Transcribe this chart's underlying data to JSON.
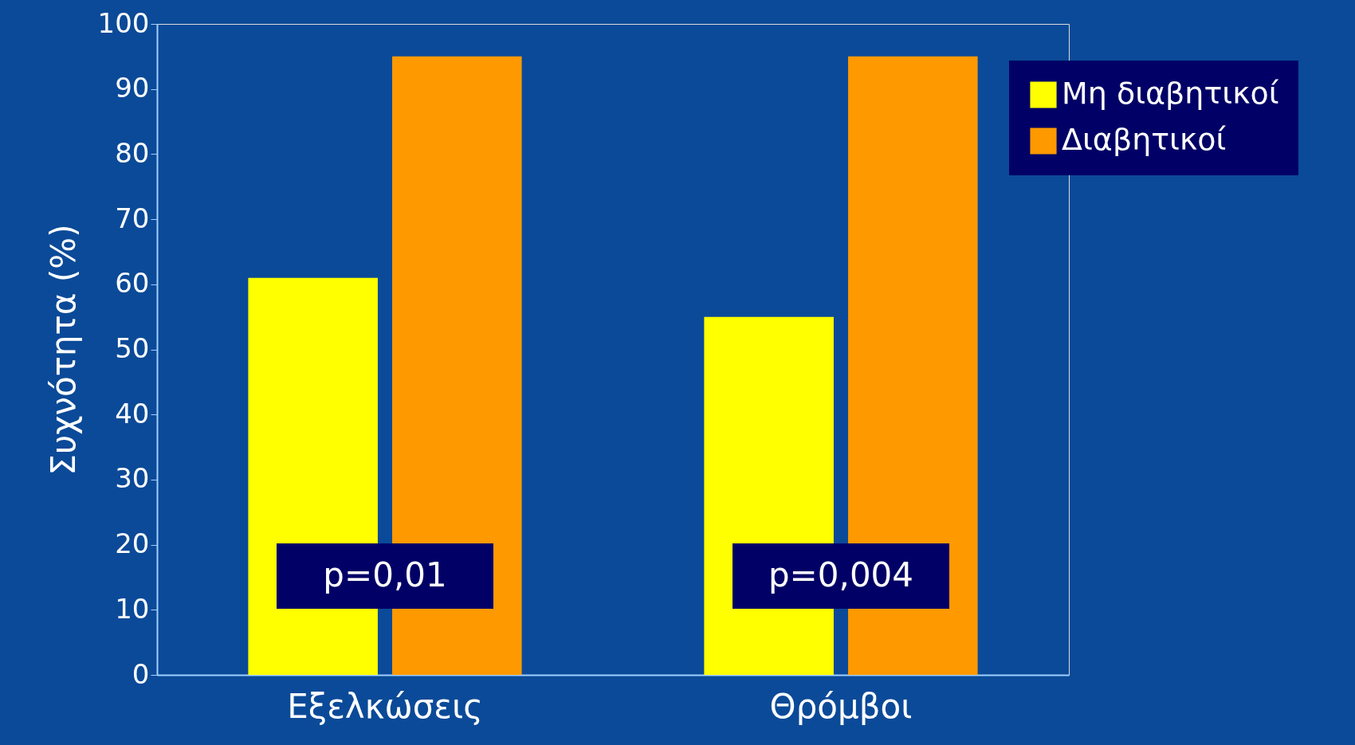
{
  "chart_data": {
    "type": "bar",
    "ylabel": "Συχνότητα (%)",
    "categories": [
      "Εξελκώσεις",
      "Θρόμβοι"
    ],
    "series": [
      {
        "name": "Μη διαβητικοί",
        "color": "#ffff00",
        "values": [
          61,
          55
        ]
      },
      {
        "name": "Διαβητικοί",
        "color": "#ff9900",
        "values": [
          95,
          95
        ]
      }
    ],
    "ylim": [
      0,
      100
    ],
    "yticks": [
      0,
      10,
      20,
      30,
      40,
      50,
      60,
      70,
      80,
      90,
      100
    ],
    "grid": false,
    "legend": "top right",
    "annotations": [
      "p=0,01",
      "p=0,004"
    ]
  }
}
